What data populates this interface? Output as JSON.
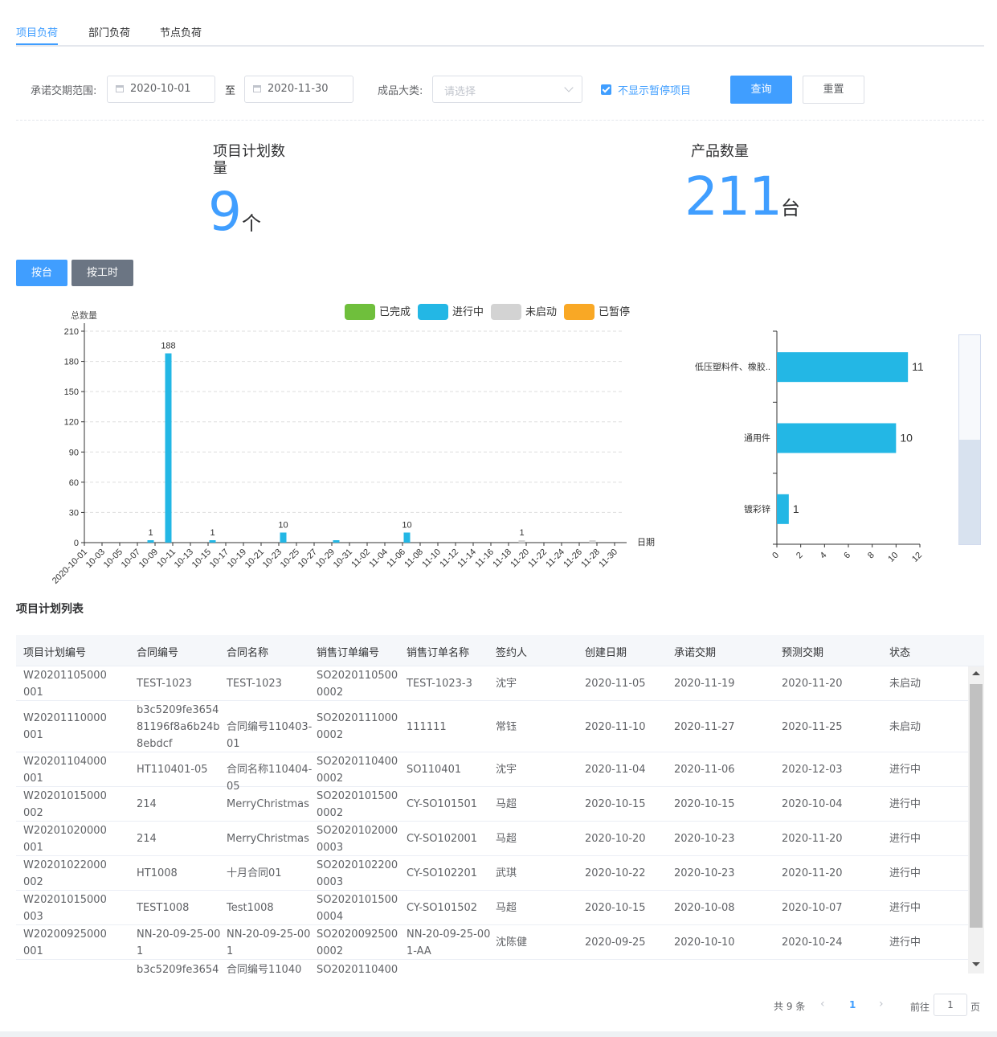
{
  "tabs": [
    {
      "label": "项目负荷",
      "active": true
    },
    {
      "label": "部门负荷",
      "active": false
    },
    {
      "label": "节点负荷",
      "active": false
    }
  ],
  "filters": {
    "date_label": "承诺交期范围:",
    "start_date": "2020-10-01",
    "to": "至",
    "end_date": "2020-11-30",
    "category_label": "成品大类:",
    "category_placeholder": "请选择",
    "hide_paused_label": "不显示暂停项目",
    "hide_paused_checked": true,
    "search_button": "查询",
    "reset_button": "重置"
  },
  "stats": {
    "plan_count_title": "项目计划数量",
    "plan_count_value": "9",
    "plan_count_unit": "个",
    "product_count_title": "产品数量",
    "product_count_value": "211",
    "product_count_unit": "台"
  },
  "toggle": {
    "by_unit": "按台",
    "by_hours": "按工时"
  },
  "colors": {
    "accent": "#409eff",
    "done": "#6fbf3c",
    "in_progress": "#23b7e5",
    "not_started": "#d3d3d3",
    "paused": "#f9a825"
  },
  "chart_data": [
    {
      "type": "bar",
      "ylabel": "总数量",
      "xlabel": "日期",
      "ylim": [
        0,
        210
      ],
      "yticks": [
        0,
        30,
        60,
        90,
        120,
        150,
        180,
        210
      ],
      "grid": true,
      "legend_position": "top",
      "legend": [
        "已完成",
        "进行中",
        "未启动",
        "已暂停"
      ],
      "x_tick_labels": [
        "2020-10-01",
        "10-03",
        "10-05",
        "10-07",
        "10-09",
        "10-11",
        "10-13",
        "10-15",
        "10-17",
        "10-19",
        "10-21",
        "10-23",
        "10-25",
        "10-27",
        "10-29",
        "10-31",
        "11-02",
        "11-04",
        "11-06",
        "11-08",
        "11-10",
        "11-12",
        "11-14",
        "11-16",
        "11-18",
        "11-20",
        "11-22",
        "11-24",
        "11-26",
        "11-28",
        "11-30"
      ],
      "bars": [
        {
          "date": "10-08",
          "status": "进行中",
          "value": 1,
          "label": "1"
        },
        {
          "date": "10-10",
          "status": "进行中",
          "value": 188,
          "label": "188"
        },
        {
          "date": "10-15",
          "status": "进行中",
          "value": 1,
          "label": "1"
        },
        {
          "date": "10-23",
          "status": "进行中",
          "value": 10,
          "label": "10"
        },
        {
          "date": "10-29",
          "status": "进行中",
          "value": 1,
          "label": ""
        },
        {
          "date": "11-06",
          "status": "进行中",
          "value": 10,
          "label": "10"
        },
        {
          "date": "11-19",
          "status": "未启动",
          "value": 1,
          "label": "1"
        },
        {
          "date": "11-27",
          "status": "未启动",
          "value": 1,
          "label": ""
        }
      ]
    },
    {
      "type": "bar",
      "orientation": "horizontal",
      "xlim": [
        0,
        12
      ],
      "xticks": [
        0,
        2,
        4,
        6,
        8,
        10,
        12
      ],
      "categories": [
        "低压塑料件、橡胶..",
        "通用件",
        "镀彩锌"
      ],
      "values": [
        11,
        10,
        1
      ]
    }
  ],
  "list": {
    "title": "项目计划列表",
    "columns": [
      "项目计划编号",
      "合同编号",
      "合同名称",
      "销售订单编号",
      "销售订单名称",
      "签约人",
      "创建日期",
      "承诺交期",
      "预测交期",
      "状态"
    ],
    "rows": [
      [
        "W20201105000001",
        "TEST-1023",
        "TEST-1023",
        "SO20201105000002",
        "TEST-1023-3",
        "沈宇",
        "2020-11-05",
        "2020-11-19",
        "2020-11-20",
        "未启动"
      ],
      [
        "W20201110000001",
        "b3c5209fe365481196f8a6b24b8ebdcf",
        "合同编号110403-01",
        "SO20201110000002",
        "111111",
        "常钰",
        "2020-11-10",
        "2020-11-27",
        "2020-11-25",
        "未启动"
      ],
      [
        "W20201104000001",
        "HT110401-05",
        "合同名称110404-05",
        "SO20201104000002",
        "SO110401",
        "沈宇",
        "2020-11-04",
        "2020-11-06",
        "2020-12-03",
        "进行中"
      ],
      [
        "W20201015000002",
        "214",
        "MerryChristmas",
        "SO20201015000002",
        "CY-SO101501",
        "马超",
        "2020-10-15",
        "2020-10-15",
        "2020-10-04",
        "进行中"
      ],
      [
        "W20201020000001",
        "214",
        "MerryChristmas",
        "SO20201020000003",
        "CY-SO102001",
        "马超",
        "2020-10-20",
        "2020-10-23",
        "2020-11-20",
        "进行中"
      ],
      [
        "W20201022000002",
        "HT1008",
        "十月合同01",
        "SO20201022000003",
        "CY-SO102201",
        "武琪",
        "2020-10-22",
        "2020-10-23",
        "2020-11-20",
        "进行中"
      ],
      [
        "W20201015000003",
        "TEST1008",
        "Test1008",
        "SO20201015000004",
        "CY-SO101502",
        "马超",
        "2020-10-15",
        "2020-10-08",
        "2020-10-07",
        "进行中"
      ],
      [
        "W20200925000001",
        "NN-20-09-25-001",
        "NN-20-09-25-001",
        "SO20200925000002",
        "NN-20-09-25-001-AA",
        "沈陈健",
        "2020-09-25",
        "2020-10-10",
        "2020-10-24",
        "进行中"
      ],
      [
        "",
        "b3c5209fe3654",
        "合同编号11040",
        "SO2020110400",
        "",
        "",
        "",
        "",
        "",
        ""
      ]
    ]
  },
  "pagination": {
    "total": "共 9 条",
    "current": "1",
    "goto_label": "前往",
    "goto_value": "1",
    "page_suffix": "页"
  }
}
